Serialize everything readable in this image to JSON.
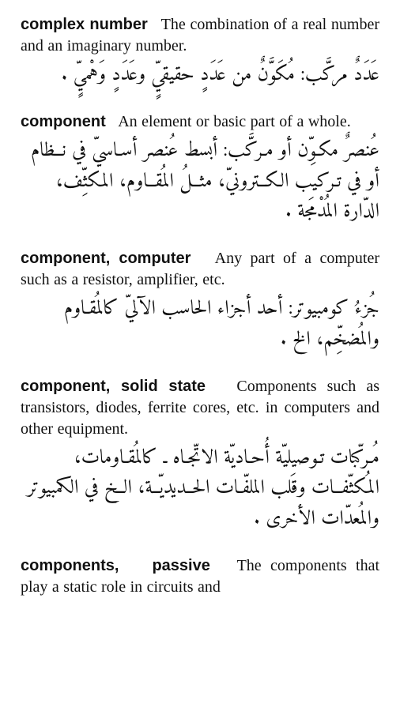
{
  "entries": [
    {
      "term": "complex number",
      "def_en": "The combination of a real number and an imaginary number.",
      "def_ar": "عَدَدٌ مركَّب: مُكَوَّنٌ من عَدَدٍ حقيقيٍّ وعَدَدٍ وَهْميٍّ ."
    },
    {
      "term": "component",
      "def_en": "An element or basic part of a whole.",
      "def_ar": "عُنصرٌ مكـوِّن أو مـركَّب: أبسط عُنصر أسـاسيّ في نــظام أو في تـركيب الكــترونيّ، مثــلُ المُقــاوم، المكثِّف، الدّارة المُدْمَجة ."
    },
    {
      "term": "component, computer",
      "def_en": "Any part of a computer such as a resistor, amplifier, etc.",
      "def_ar": "جُزءُ كومبيوتر: أحد أجزاء الحاسب الآليّ كالمُقـاوم والمُضخِّم، الخ ."
    },
    {
      "term": "component, solid state",
      "def_en": "Components such as transistors, diodes, ferrite cores, etc. in computers and other equipment.",
      "def_ar": "مُـركّبات تـوصيليّة أُحـاديّة الاتّجـاه ـ كالمُقـاومات، المُكثّفــات وقَلب الملفّـات الحــديديّــة، الــخ في الكمبيوتر والمُعدّات الأخرى ."
    },
    {
      "term": "components, passive",
      "def_en": "The components that play a static role in circuits and",
      "def_ar": ""
    }
  ]
}
